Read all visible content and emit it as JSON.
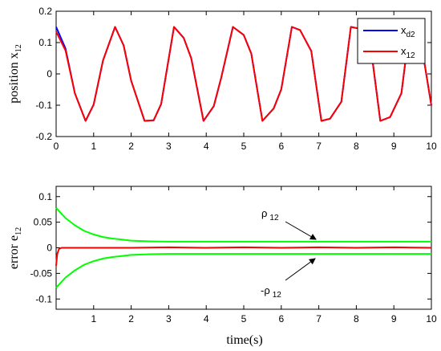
{
  "colors": {
    "xd2": "#0000ff",
    "x12": "#ff0000",
    "e12": "#ff0000",
    "bound": "#00ff00",
    "axis": "#000000"
  },
  "chart_data": [
    {
      "type": "line",
      "ylabel_main": "position x",
      "ylabel_sub": "12",
      "xlim": [
        0,
        10
      ],
      "ylim": [
        -0.2,
        0.2
      ],
      "xticks": [
        0,
        1,
        2,
        3,
        4,
        5,
        6,
        7,
        8,
        9,
        10
      ],
      "yticks": [
        -0.2,
        -0.1,
        0,
        0.1,
        0.2
      ],
      "ytick_labels": [
        "-0.2",
        "-0.1",
        "0",
        "0.1",
        "0.2"
      ],
      "legend_position": "top-right",
      "series": [
        {
          "name_main": "x",
          "name_sub": "d2",
          "color": "#0000ff",
          "function": "0.15*cos(4t)",
          "x": [
            0,
            0.25,
            0.5,
            0.785,
            1.0,
            1.25,
            1.571,
            1.8,
            2.0,
            2.356,
            2.6,
            2.8,
            3.142,
            3.4,
            3.6,
            3.927,
            4.2,
            4.4,
            4.712,
            5.0,
            5.2,
            5.498,
            5.8,
            6.0,
            6.283,
            6.5,
            6.8,
            7.069,
            7.3,
            7.6,
            7.854,
            8.1,
            8.4,
            8.639,
            8.9,
            9.2,
            9.425,
            9.7,
            10.0
          ],
          "y": [
            0.15,
            0.081,
            -0.062,
            -0.15,
            -0.098,
            0.043,
            0.15,
            0.091,
            -0.022,
            -0.15,
            -0.148,
            -0.096,
            0.15,
            0.115,
            0.05,
            -0.15,
            -0.103,
            -0.012,
            0.15,
            0.124,
            0.065,
            -0.15,
            -0.11,
            -0.049,
            0.15,
            0.14,
            0.073,
            -0.15,
            -0.143,
            -0.089,
            0.15,
            0.144,
            0.072,
            -0.15,
            -0.138,
            -0.062,
            0.15,
            0.119,
            -0.101
          ]
        },
        {
          "name_main": "x",
          "name_sub": "12",
          "color": "#ff0000",
          "function": "0.15*cos(4t), starting near 0.135",
          "x": [
            0,
            0.25,
            0.5,
            0.785,
            1.0,
            1.25,
            1.571,
            1.8,
            2.0,
            2.356,
            2.6,
            2.8,
            3.142,
            3.4,
            3.6,
            3.927,
            4.2,
            4.4,
            4.712,
            5.0,
            5.2,
            5.498,
            5.8,
            6.0,
            6.283,
            6.5,
            6.8,
            7.069,
            7.3,
            7.6,
            7.854,
            8.1,
            8.4,
            8.639,
            8.9,
            9.2,
            9.425,
            9.7,
            10.0
          ],
          "y": [
            0.135,
            0.075,
            -0.062,
            -0.15,
            -0.098,
            0.043,
            0.15,
            0.091,
            -0.022,
            -0.15,
            -0.148,
            -0.096,
            0.15,
            0.115,
            0.05,
            -0.15,
            -0.103,
            -0.012,
            0.15,
            0.124,
            0.065,
            -0.15,
            -0.11,
            -0.049,
            0.15,
            0.14,
            0.073,
            -0.15,
            -0.143,
            -0.089,
            0.15,
            0.144,
            0.072,
            -0.15,
            -0.138,
            -0.062,
            0.15,
            0.119,
            -0.101
          ]
        }
      ]
    },
    {
      "type": "line",
      "ylabel_main": "error e",
      "ylabel_sub": "12",
      "xlabel": "time(s)",
      "xlim": [
        0,
        10
      ],
      "ylim": [
        -0.12,
        0.12
      ],
      "xticks": [
        1,
        2,
        3,
        4,
        5,
        6,
        7,
        8,
        9,
        10
      ],
      "yticks": [
        -0.1,
        -0.05,
        0,
        0.05,
        0.1
      ],
      "ytick_labels": [
        "-0.1",
        "-0.05",
        "0",
        "0.05",
        "0.1"
      ],
      "series": [
        {
          "name_main": "ρ",
          "name_sub": "12",
          "color": "#00ff00",
          "x": [
            0,
            0.25,
            0.5,
            0.75,
            1.0,
            1.25,
            1.5,
            1.75,
            2.0,
            2.5,
            3.0,
            4.0,
            5.0,
            6.0,
            7.0,
            8.0,
            9.0,
            10.0
          ],
          "y": [
            0.078,
            0.058,
            0.044,
            0.033,
            0.026,
            0.021,
            0.018,
            0.016,
            0.014,
            0.0125,
            0.012,
            0.012,
            0.012,
            0.012,
            0.012,
            0.012,
            0.012,
            0.012
          ]
        },
        {
          "name_main": "-ρ",
          "name_sub": "12",
          "color": "#00ff00",
          "x": [
            0,
            0.25,
            0.5,
            0.75,
            1.0,
            1.25,
            1.5,
            1.75,
            2.0,
            2.5,
            3.0,
            4.0,
            5.0,
            6.0,
            7.0,
            8.0,
            9.0,
            10.0
          ],
          "y": [
            -0.078,
            -0.058,
            -0.044,
            -0.033,
            -0.026,
            -0.021,
            -0.018,
            -0.016,
            -0.014,
            -0.0125,
            -0.012,
            -0.012,
            -0.012,
            -0.012,
            -0.012,
            -0.012,
            -0.012,
            -0.012
          ]
        },
        {
          "name_main": "e",
          "name_sub": "12",
          "color": "#ff0000",
          "x": [
            0,
            0.03,
            0.08,
            0.15,
            0.3,
            0.6,
            1.0,
            1.5,
            2.0,
            3.0,
            4.0,
            5.0,
            6.0,
            7.0,
            8.0,
            9.0,
            10.0
          ],
          "y": [
            -0.035,
            -0.012,
            -0.002,
            0.0,
            0.0,
            0.0,
            0.0,
            0.0,
            0.0,
            0.001,
            0.0,
            0.001,
            0.0,
            0.001,
            0.0,
            0.001,
            0.0
          ]
        }
      ],
      "annotations": [
        {
          "text_main": "ρ",
          "text_sub": "12",
          "points_to_x": 7.0,
          "points_to_y": 0.012
        },
        {
          "text_main": "-ρ",
          "text_sub": "12",
          "points_to_x": 7.0,
          "points_to_y": -0.012
        }
      ]
    }
  ]
}
